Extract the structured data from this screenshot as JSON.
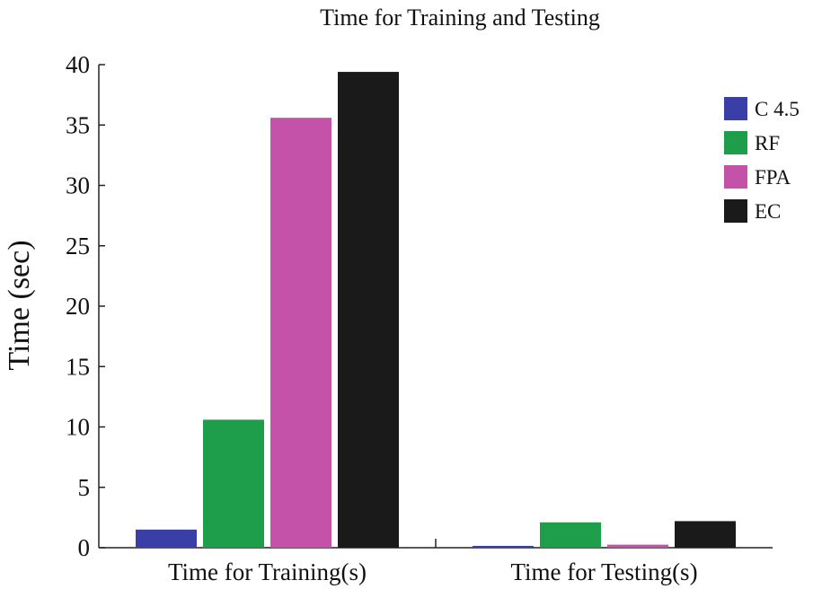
{
  "chart_data": {
    "type": "bar",
    "title": "Time for Training and Testing",
    "xlabel": "",
    "ylabel": "Time (sec)",
    "ylim": [
      0,
      40
    ],
    "yticks": [
      0,
      5,
      10,
      15,
      20,
      25,
      30,
      35,
      40
    ],
    "categories": [
      "Time for Training(s)",
      "Time for Testing(s)"
    ],
    "series": [
      {
        "name": "C 4.5",
        "color": "#3a3fa8",
        "values": [
          1.5,
          0.15
        ]
      },
      {
        "name": "RF",
        "color": "#1e9e4a",
        "values": [
          10.6,
          2.1
        ]
      },
      {
        "name": "FPA",
        "color": "#c552a9",
        "values": [
          35.6,
          0.25
        ]
      },
      {
        "name": "EC",
        "color": "#1a1a1a",
        "values": [
          39.4,
          2.2
        ]
      }
    ],
    "grid": false,
    "legend_position": "top-right"
  }
}
